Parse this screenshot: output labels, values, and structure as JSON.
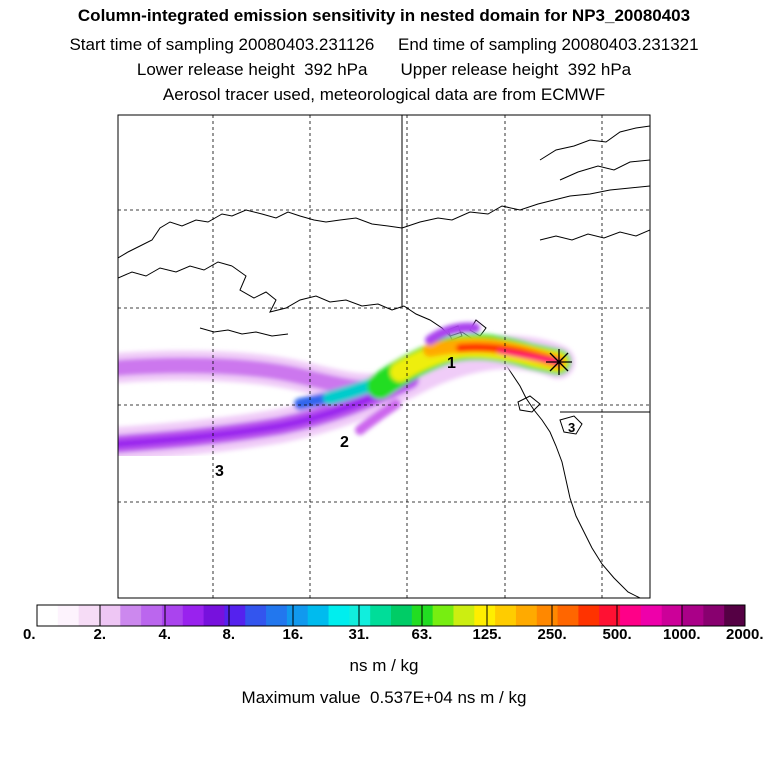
{
  "header": {
    "title": "Column-integrated emission sensitivity in nested domain for NP3_20080403",
    "times": "Start time of sampling 20080403.231126     End time of sampling 20080403.231321",
    "heights": "Lower release height  392 hPa       Upper release height  392 hPa",
    "tracer": "Aerosol tracer used, meteorological data are from ECMWF"
  },
  "map": {
    "labels": [
      "1",
      "2",
      "3",
      "3"
    ],
    "receptor_marker": "star-cross"
  },
  "colorbar": {
    "ticks": [
      "0.",
      "2.",
      "4.",
      "8.",
      "16.",
      "31.",
      "63.",
      "125.",
      "250.",
      "500.",
      "1000.",
      "2000."
    ],
    "colors": [
      "#ffffff",
      "#fdf3fd",
      "#f6dcf6",
      "#eec6f4",
      "#cc88ee",
      "#bb66ee",
      "#aa44ee",
      "#9922ee",
      "#7711dd",
      "#5522ee",
      "#3355ee",
      "#2277ee",
      "#1199ee",
      "#00bbee",
      "#00eeee",
      "#11eedd",
      "#00dd99",
      "#00cc66",
      "#22dd22",
      "#77ee11",
      "#ccee11",
      "#ffee00",
      "#ffcc00",
      "#ffaa00",
      "#ff8800",
      "#ff6600",
      "#ff3300",
      "#ff1133",
      "#ff0088",
      "#ee00aa",
      "#cc0099",
      "#aa0088",
      "#88006f",
      "#550044"
    ],
    "units": "ns m / kg"
  },
  "footer": {
    "max_value": "Maximum value  0.537E+04 ns m / kg"
  }
}
